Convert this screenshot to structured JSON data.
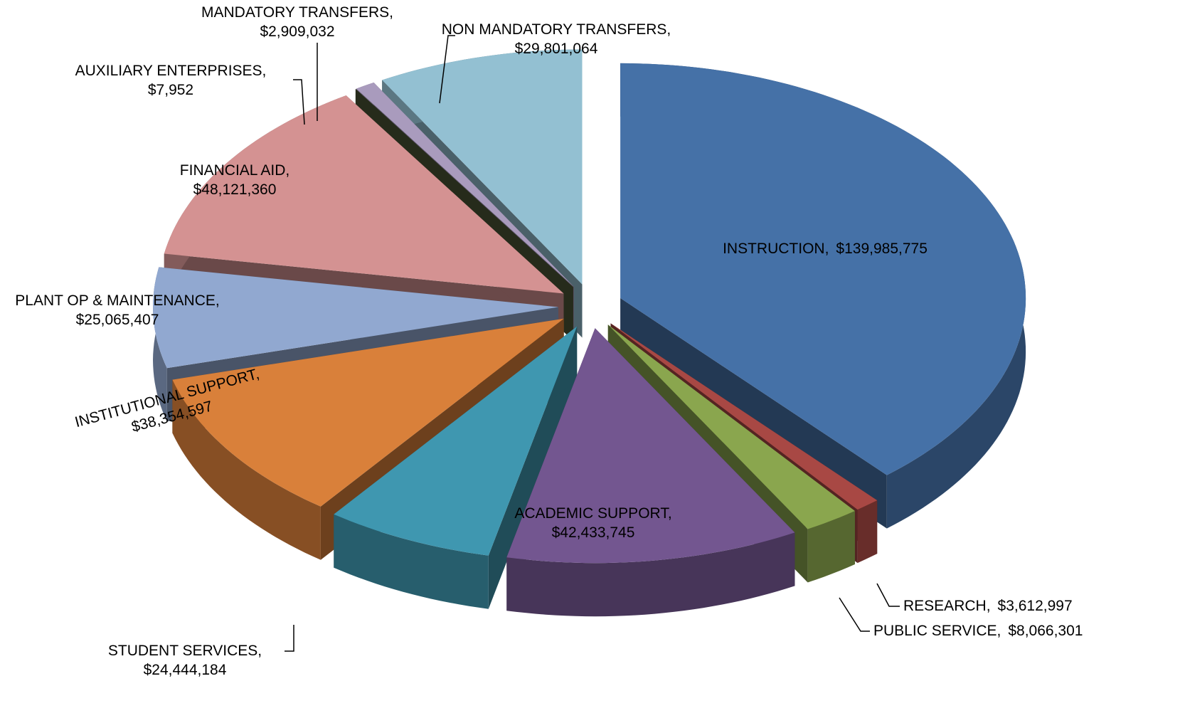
{
  "chart_data": {
    "type": "pie",
    "categories": [
      "INSTRUCTION,",
      "RESEARCH,",
      "PUBLIC SERVICE,",
      "ACADEMIC SUPPORT,",
      "STUDENT SERVICES,",
      "INSTITUTIONAL SUPPORT,",
      "PLANT OP & MAINTENANCE,",
      "FINANCIAL AID,",
      "AUXILIARY ENTERPRISES,",
      "MANDATORY TRANSFERS,",
      "NON MANDATORY TRANSFERS,"
    ],
    "values": [
      139985775,
      3612997,
      8066301,
      42433745,
      24444184,
      38354597,
      25065407,
      48121360,
      7952,
      2909032,
      29801064
    ],
    "value_labels": [
      "$139,985,775",
      "$3,612,997",
      "$8,066,301",
      "$42,433,745",
      "$24,444,184",
      "$38,354,597",
      "$25,065,407",
      "$48,121,360",
      "$7,952",
      "$2,909,032",
      "$29,801,064"
    ],
    "colors": [
      "#4571a7",
      "#a84844",
      "#8aa64e",
      "#735690",
      "#3f97b0",
      "#d9803a",
      "#91a8d0",
      "#d49292",
      "#4b5535",
      "#a99bbd",
      "#93c0d2"
    ]
  }
}
